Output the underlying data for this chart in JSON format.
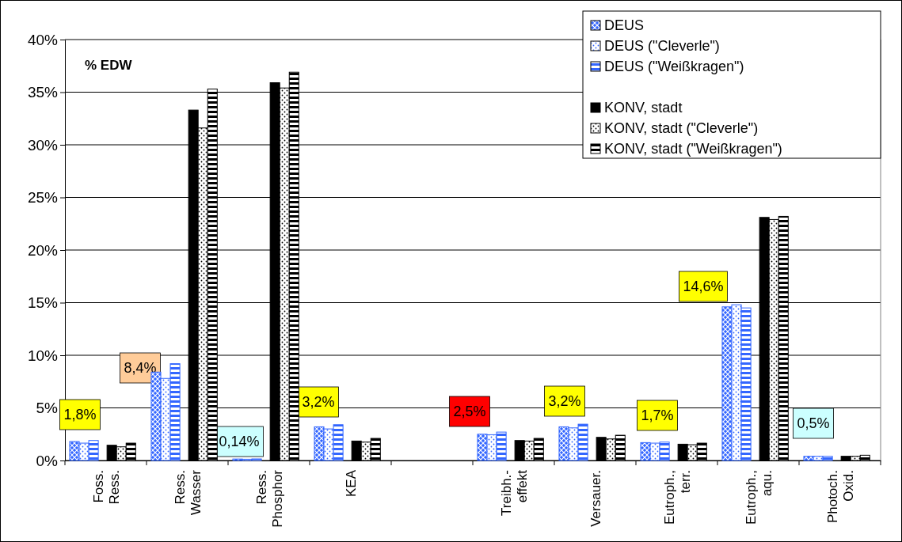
{
  "chart_data": {
    "type": "bar",
    "categories": [
      "Foss.\nRess.",
      "Ress.\nWasser",
      "Ress.\nPhosphor",
      "KEA",
      null,
      "Treibh.-\neffekt",
      "Versauer.",
      "Eutroph.,\nterr.",
      "Eutroph.,\naqu.",
      "Photoch.\nOxid."
    ],
    "series": [
      {
        "name": "DEUS",
        "color": "#3366ff",
        "values": [
          1.8,
          8.4,
          0.14,
          3.2,
          null,
          2.5,
          3.2,
          1.7,
          14.6,
          0.4
        ]
      },
      {
        "name": "DEUS (\"Cleverle\")",
        "color": "#3366ff",
        "values": [
          1.65,
          7.8,
          0.12,
          3.0,
          null,
          2.45,
          3.1,
          1.65,
          14.8,
          0.4
        ]
      },
      {
        "name": "DEUS (\"Weißkragen\")",
        "color": "#3366ff",
        "values": [
          1.9,
          9.2,
          0.15,
          3.4,
          null,
          2.7,
          3.45,
          1.75,
          14.5,
          0.4
        ]
      },
      {
        "name": "KONV, stadt",
        "color": "#000000",
        "values": [
          1.45,
          33.3,
          35.9,
          1.85,
          null,
          1.9,
          2.2,
          1.55,
          23.1,
          0.4
        ]
      },
      {
        "name": "KONV, stadt (\"Cleverle\")",
        "color": "#000000",
        "values": [
          1.3,
          31.6,
          35.4,
          1.75,
          null,
          1.85,
          2.05,
          1.5,
          22.9,
          0.4
        ]
      },
      {
        "name": "KONV, stadt (\"Weißkragen\")",
        "color": "#000000",
        "values": [
          1.65,
          35.3,
          36.9,
          2.1,
          null,
          2.1,
          2.4,
          1.65,
          23.2,
          0.5
        ]
      }
    ],
    "ylim": [
      0,
      40
    ],
    "yticks": [
      {
        "value": 0,
        "label": "0%"
      },
      {
        "value": 5,
        "label": "5%"
      },
      {
        "value": 10,
        "label": "10%"
      },
      {
        "value": 15,
        "label": "15%"
      },
      {
        "value": 20,
        "label": "20%"
      },
      {
        "value": 25,
        "label": "25%"
      },
      {
        "value": 30,
        "label": "30%"
      },
      {
        "value": 35,
        "label": "35%"
      },
      {
        "value": 40,
        "label": "40%"
      }
    ],
    "grid": "y",
    "legend": "top right",
    "annotations": [
      "% EDW",
      "1,8%",
      "8,4%",
      "0,14%",
      "3,2%",
      "2,5%",
      "3,2%",
      "1,7%",
      "14,6%",
      "0,5%"
    ]
  }
}
